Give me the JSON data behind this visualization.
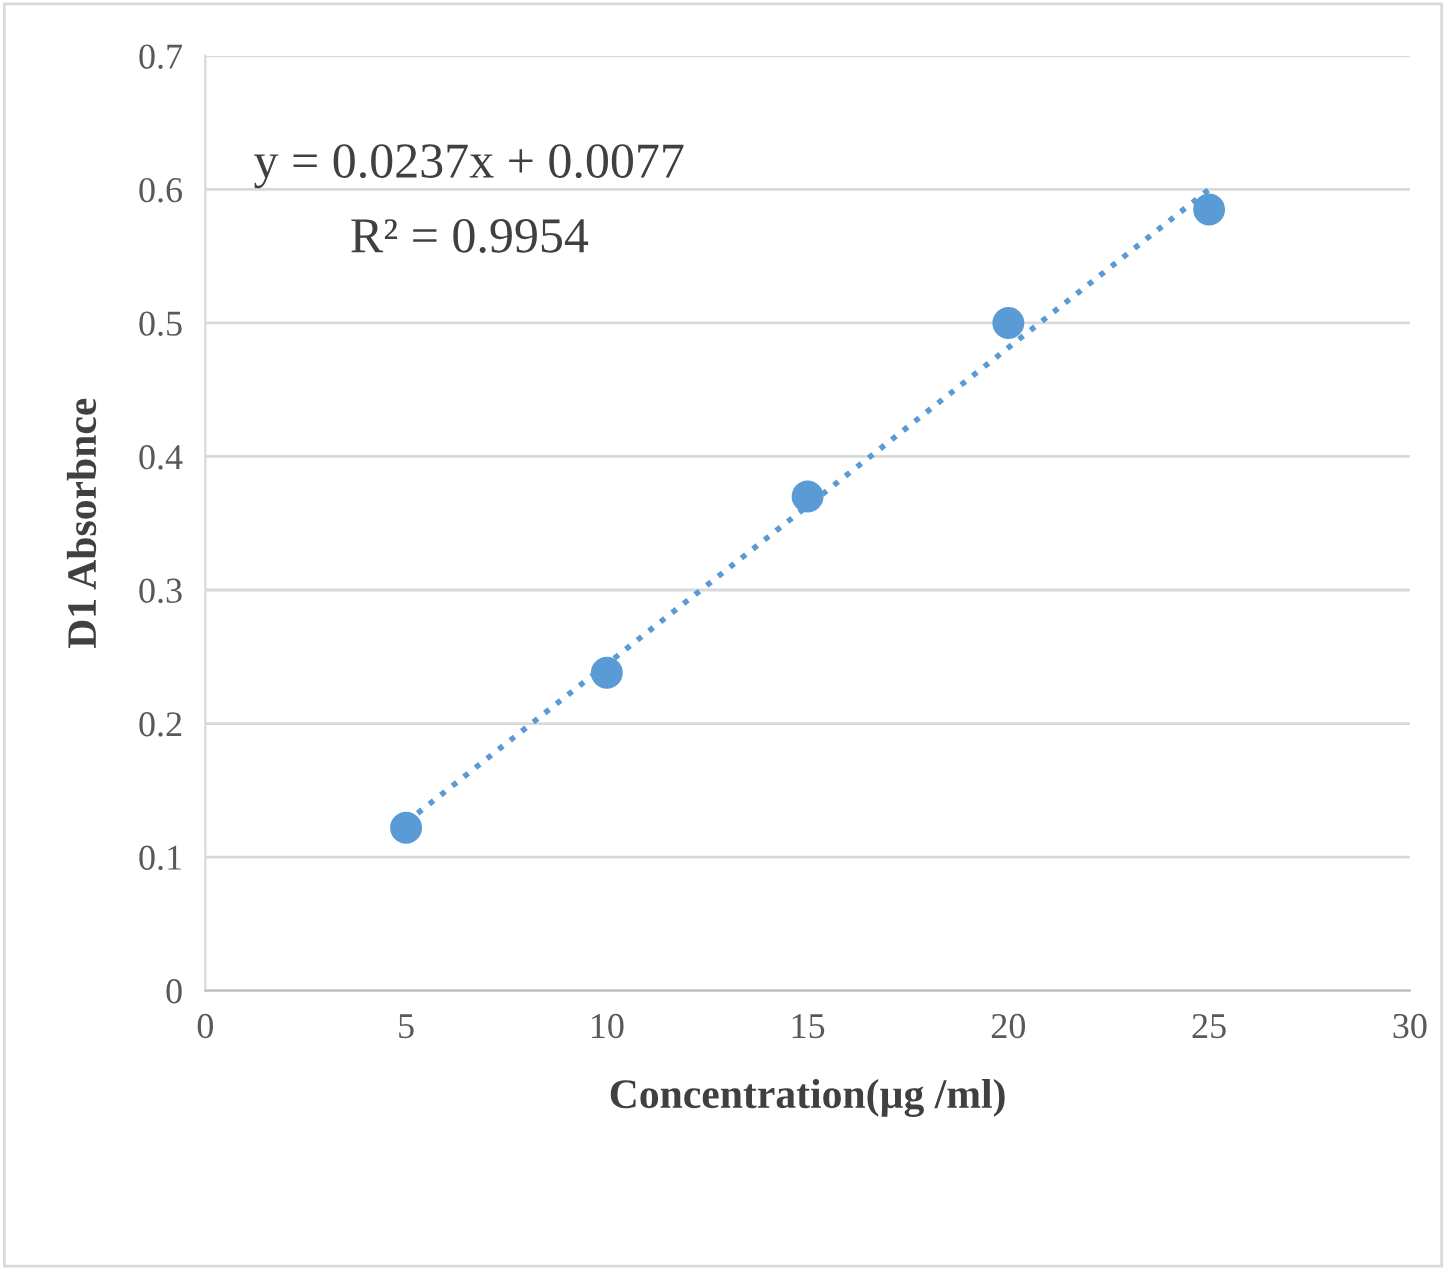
{
  "chart_data": {
    "type": "scatter",
    "xlabel": "Concentration(µg /ml)",
    "ylabel": "D1 Absorbnce",
    "annotations": [
      "y = 0.0237x + 0.0077",
      "R² = 0.9954"
    ],
    "series": [
      {
        "color": "#5b9bd5",
        "x": [
          5,
          10,
          15,
          20,
          25
        ],
        "values": [
          0.122,
          0.238,
          0.37,
          0.5,
          0.585
        ],
        "marker": "circle"
      },
      {
        "type": "line",
        "color": "#5b9bd5",
        "x": [
          5,
          25
        ],
        "values": [
          0.126,
          0.6
        ],
        "line_style": "dotted",
        "marker": "none"
      }
    ],
    "xlim": [
      0,
      30
    ],
    "xticks": [
      0,
      5,
      10,
      15,
      20,
      25,
      30
    ],
    "ylim": [
      0,
      0.7
    ],
    "yticks": [
      0,
      0.1,
      0.2,
      0.3,
      0.4,
      0.5,
      0.6,
      0.7
    ],
    "grid": "y",
    "legend": false
  }
}
